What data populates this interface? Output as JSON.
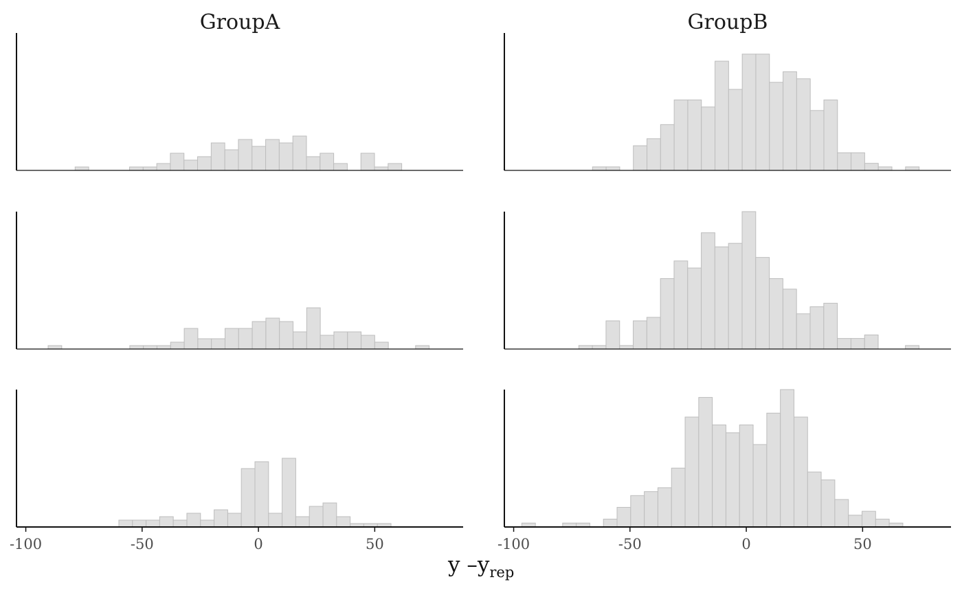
{
  "chart_data": {
    "type": "bar",
    "xlabel_main": "y –y",
    "xlabel_sub": "rep",
    "bar_fill": "#dfdfdf",
    "bar_stroke": "#bdbdbd",
    "axis_color": "#111111",
    "bin_width": 5.85,
    "xlim": [
      -104,
      88
    ],
    "grid": false,
    "x_ticks": [
      {
        "value": -100,
        "label": "-100"
      },
      {
        "value": -50,
        "label": "-50"
      },
      {
        "value": 0,
        "label": "0"
      },
      {
        "value": 50,
        "label": "50"
      }
    ],
    "facet_titles": [
      "GroupA",
      "GroupB"
    ],
    "panels": [
      {
        "group": "GroupA",
        "bin_start": -78.8,
        "counts": [
          1,
          0,
          0,
          0,
          1,
          1,
          2,
          5,
          3,
          4,
          8,
          6,
          9,
          7,
          9,
          8,
          10,
          4,
          5,
          2,
          0,
          5,
          1,
          2
        ],
        "max_count": 40
      },
      {
        "group": "GroupB",
        "bin_start": -66.1,
        "counts": [
          1,
          1,
          0,
          7,
          9,
          13,
          20,
          20,
          18,
          31,
          23,
          33,
          33,
          25,
          28,
          26,
          17,
          20,
          5,
          5,
          2,
          1,
          0,
          1
        ],
        "max_count": 39
      },
      {
        "group": "GroupA",
        "bin_start": -90.4,
        "counts": [
          1,
          0,
          0,
          0,
          0,
          0,
          1,
          1,
          1,
          2,
          6,
          3,
          3,
          6,
          6,
          8,
          9,
          8,
          5,
          12,
          4,
          5,
          5,
          4,
          2,
          0,
          0,
          1
        ],
        "max_count": 40
      },
      {
        "group": "GroupB",
        "bin_start": -72.0,
        "counts": [
          1,
          1,
          8,
          1,
          8,
          9,
          20,
          25,
          23,
          33,
          29,
          30,
          39,
          26,
          20,
          17,
          10,
          12,
          13,
          3,
          3,
          4,
          0,
          0,
          1
        ],
        "max_count": 39
      },
      {
        "group": "GroupA",
        "bin_start": -60.0,
        "counts": [
          2,
          2,
          2,
          3,
          2,
          4,
          2,
          5,
          4,
          17,
          19,
          4,
          20,
          3,
          6,
          7,
          3,
          1,
          1,
          1
        ],
        "max_count": 40
      },
      {
        "group": "GroupB",
        "bin_start": -96.5,
        "counts": [
          1,
          0,
          0,
          1,
          1,
          0,
          2,
          5,
          8,
          9,
          10,
          15,
          28,
          33,
          26,
          24,
          26,
          21,
          29,
          35,
          28,
          14,
          12,
          7,
          3,
          4,
          2,
          1
        ],
        "max_count": 35
      }
    ]
  }
}
